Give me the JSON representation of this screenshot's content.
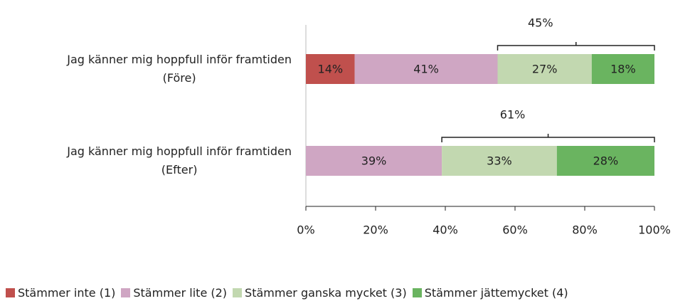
{
  "chart_data": {
    "type": "bar",
    "orientation": "horizontal",
    "stacked": true,
    "categories": [
      "Jag känner mig hoppfull inför framtiden\n(Före)",
      "Jag känner mig hoppfull inför framtiden\n(Efter)"
    ],
    "series": [
      {
        "name": "Stämmer inte (1)",
        "color": "#c0504d",
        "values": [
          14,
          null
        ],
        "value_labels": [
          "14%",
          null
        ]
      },
      {
        "name": "Stämmer lite (2)",
        "color": "#cfa6c3",
        "values": [
          41,
          39
        ],
        "value_labels": [
          "41%",
          "39%"
        ]
      },
      {
        "name": "Stämmer ganska mycket (3)",
        "color": "#c2d8b0",
        "values": [
          27,
          33
        ],
        "value_labels": [
          "27%",
          "33%"
        ]
      },
      {
        "name": "Stämmer jättemycket (4)",
        "color": "#6ab460",
        "values": [
          18,
          28
        ],
        "value_labels": [
          "18%",
          "28%"
        ]
      }
    ],
    "bracket_values": [
      45,
      61
    ],
    "bracket_labels": [
      "45%",
      "61%"
    ],
    "xlim": [
      0,
      100
    ],
    "xticks": [
      {
        "value": 0,
        "label": "0%"
      },
      {
        "value": 20,
        "label": "20%"
      },
      {
        "value": 40,
        "label": "40%"
      },
      {
        "value": 60,
        "label": "60%"
      },
      {
        "value": 80,
        "label": "80%"
      },
      {
        "value": 100,
        "label": "100%"
      }
    ],
    "legend": "bottom"
  }
}
